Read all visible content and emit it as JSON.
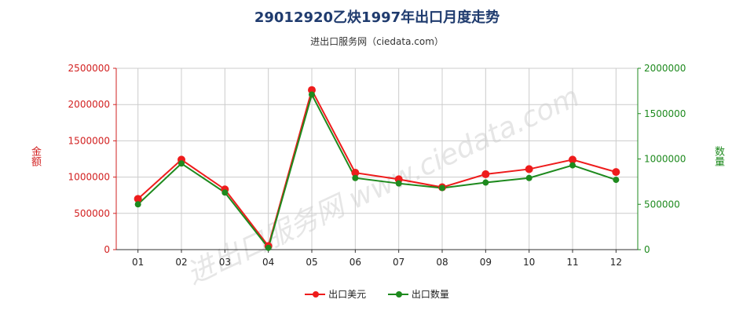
{
  "title": "29012920乙炔1997年出口月度走势",
  "subtitle": "进出口服务网（ciedata.com）",
  "watermark": "进出口服务网 www.ciedata.com",
  "colors": {
    "series1": "#ee1c1c",
    "series2": "#1e8a1e",
    "grid": "#cccccc",
    "axis": "#333333"
  },
  "chart_data": {
    "type": "line",
    "title": "29012920乙炔1997年出口月度走势",
    "categories": [
      "01",
      "02",
      "03",
      "04",
      "05",
      "06",
      "07",
      "08",
      "09",
      "10",
      "11",
      "12"
    ],
    "series": [
      {
        "name": "出口美元",
        "axis": "left",
        "values": [
          700000,
          1240000,
          830000,
          50000,
          2200000,
          1060000,
          970000,
          860000,
          1040000,
          1110000,
          1240000,
          1070000
        ]
      },
      {
        "name": "出口数量",
        "axis": "right",
        "values": [
          500000,
          950000,
          630000,
          20000,
          1710000,
          790000,
          730000,
          680000,
          740000,
          790000,
          930000,
          770000
        ]
      }
    ],
    "ylabel_left": "金额",
    "ylabel_right": "数量",
    "ylim_left": [
      0,
      2500000
    ],
    "ylim_right": [
      0,
      2000000
    ],
    "yticks_left": [
      "0",
      "500000",
      "1000000",
      "1500000",
      "2000000",
      "2500000"
    ],
    "yticks_right": [
      "0",
      "500000",
      "1000000",
      "1500000",
      "2000000"
    ],
    "grid": true,
    "legend_position": "bottom"
  }
}
